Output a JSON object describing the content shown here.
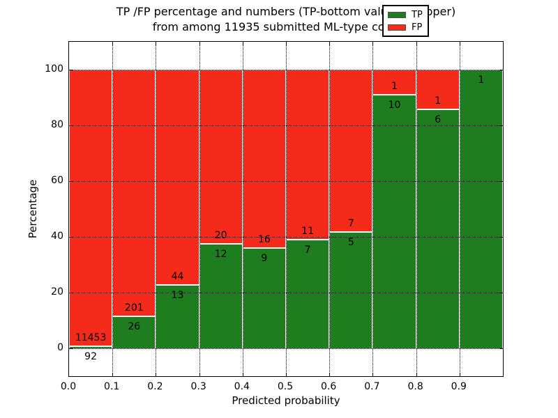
{
  "title": {
    "line1": "TP /FP percentage and numbers (TP-bottom value, FP-upper)",
    "line2": "from among 11935 submitted ML-type contacts"
  },
  "axes": {
    "xlabel": "Predicted probability",
    "ylabel": "Percentage",
    "x_tick_labels": [
      "0.0",
      "0.1",
      "0.2",
      "0.3",
      "0.4",
      "0.5",
      "0.6",
      "0.7",
      "0.8",
      "0.9"
    ],
    "y_tick_labels": [
      "0",
      "20",
      "40",
      "60",
      "80",
      "100"
    ],
    "y_tick_values": [
      0,
      20,
      40,
      60,
      80,
      100
    ]
  },
  "legend": {
    "items": [
      {
        "label": "TP",
        "color": "#1e7d1e"
      },
      {
        "label": "FP",
        "color": "#f42a1a"
      }
    ]
  },
  "chart_data": {
    "type": "bar",
    "stacked": true,
    "normalized": "each bin scaled to 100%, green TP portion bottom, red FP portion upper",
    "title": "TP /FP percentage and numbers (TP-bottom value, FP-upper)\nfrom among 11935 submitted ML-type contacts",
    "xlabel": "Predicted probability",
    "ylabel": "Percentage",
    "xlim": [
      0.0,
      1.0
    ],
    "ylim": [
      -10,
      110
    ],
    "grid": "dotted, drawn over bars",
    "legend_position": "upper right",
    "total_contacts": 11935,
    "bin_edges": [
      0.0,
      0.1,
      0.2,
      0.3,
      0.4,
      0.5,
      0.6,
      0.7,
      0.8,
      0.9,
      1.0
    ],
    "series": [
      {
        "name": "TP",
        "color": "#1e7d1e",
        "counts": [
          92,
          26,
          13,
          12,
          9,
          7,
          5,
          10,
          6,
          1
        ]
      },
      {
        "name": "FP",
        "color": "#f42a1a",
        "counts": [
          11453,
          201,
          44,
          20,
          16,
          11,
          7,
          1,
          1,
          0
        ]
      }
    ],
    "tp_percent_of_bin": [
      0.8,
      11.5,
      22.8,
      37.5,
      36.0,
      38.9,
      41.7,
      90.9,
      85.7,
      100.0
    ]
  }
}
